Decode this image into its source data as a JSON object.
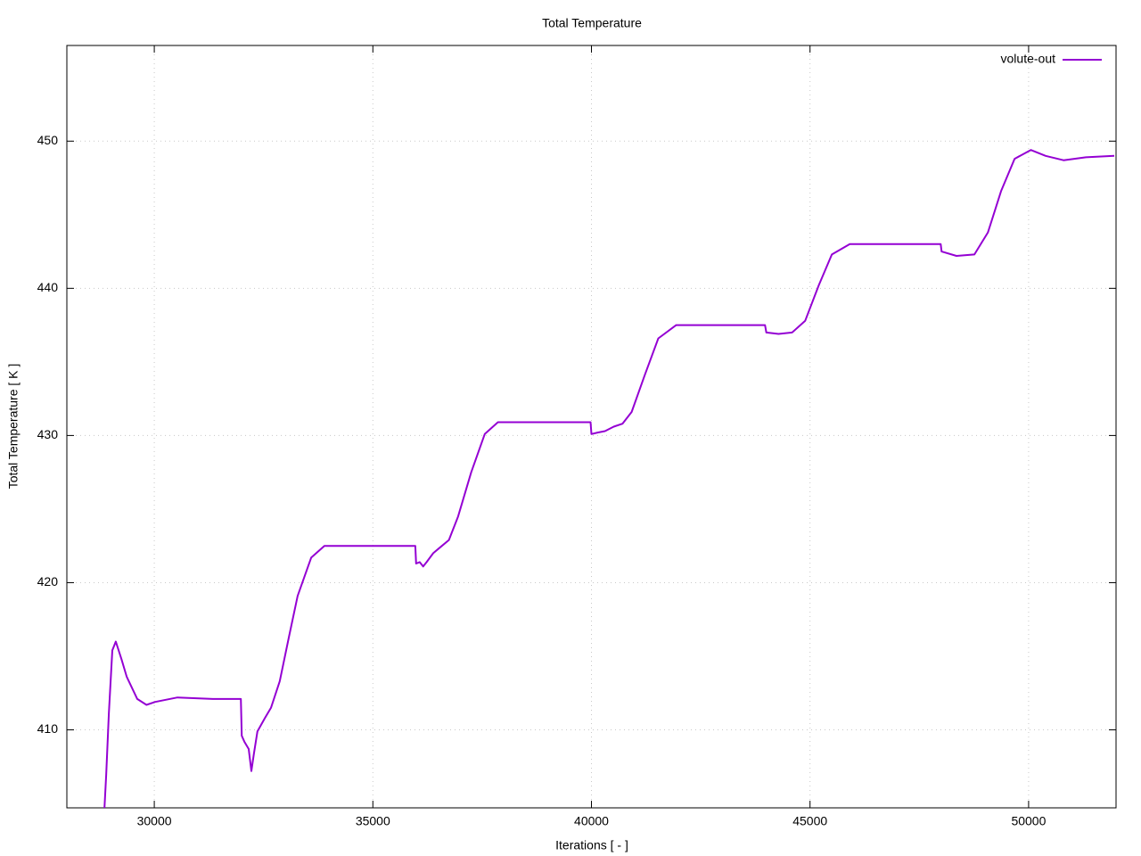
{
  "chart_data": {
    "type": "line",
    "title": "Total Temperature",
    "x_label": "Iterations [ - ]",
    "y_label": "Total Temperature [ K ]",
    "x": [
      28860,
      28900,
      28960,
      29040,
      29120,
      29250,
      29370,
      29610,
      29820,
      30020,
      30530,
      31340,
      31980,
      32000,
      32060,
      32160,
      32220,
      32280,
      32360,
      32530,
      32670,
      32870,
      33080,
      33280,
      33590,
      33890,
      35970,
      35990,
      36070,
      36150,
      36230,
      36380,
      36540,
      36740,
      36950,
      37250,
      37560,
      37860,
      39980,
      40000,
      40140,
      40310,
      40510,
      40710,
      40920,
      41220,
      41530,
      41940,
      43970,
      44000,
      44280,
      44590,
      44890,
      45200,
      45500,
      45910,
      47990,
      48010,
      48350,
      48760,
      49070,
      49370,
      49680,
      50050,
      50390,
      50800,
      51310,
      51960
    ],
    "series": [
      {
        "name": "volute-out",
        "color": "#9400d3",
        "values": [
          404.7,
          406.9,
          411.1,
          415.4,
          416.0,
          414.8,
          413.6,
          412.1,
          411.7,
          411.9,
          412.2,
          412.1,
          412.1,
          409.6,
          409.2,
          408.7,
          407.2,
          408.4,
          409.9,
          410.8,
          411.5,
          413.3,
          416.3,
          419.1,
          421.7,
          422.5,
          422.5,
          421.3,
          421.4,
          421.1,
          421.4,
          422.0,
          422.4,
          422.9,
          424.5,
          427.5,
          430.1,
          430.9,
          430.9,
          430.1,
          430.2,
          430.3,
          430.6,
          430.8,
          431.6,
          434.1,
          436.6,
          437.5,
          437.5,
          437.0,
          436.9,
          437.0,
          437.8,
          440.2,
          442.3,
          443.0,
          443.0,
          442.5,
          442.2,
          442.3,
          443.8,
          446.6,
          448.8,
          449.4,
          449.0,
          448.7,
          448.9,
          449.0
        ]
      }
    ],
    "xlim": [
      28000,
      52000
    ],
    "xticks": [
      30000,
      35000,
      40000,
      45000,
      50000
    ],
    "ylim": [
      404.7,
      456.5
    ],
    "yticks": [
      410,
      420,
      430,
      440,
      450
    ],
    "grid": true,
    "legend": "top-right"
  }
}
